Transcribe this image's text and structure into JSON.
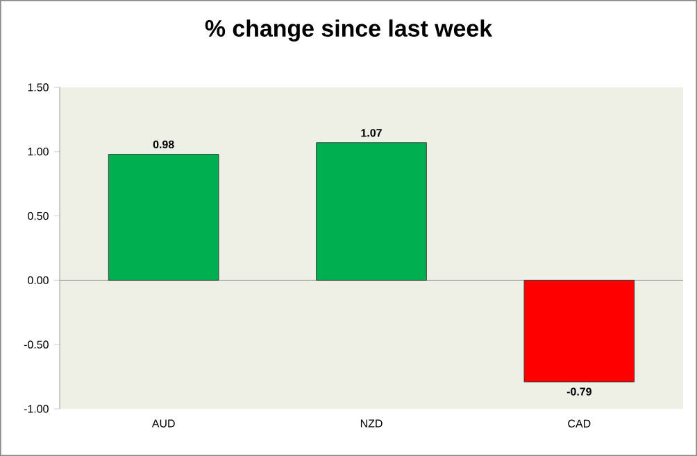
{
  "chart_data": {
    "type": "bar",
    "title": "% change since last week",
    "categories": [
      "AUD",
      "NZD",
      "CAD"
    ],
    "values": [
      0.98,
      1.07,
      -0.79
    ],
    "colors": [
      "#00b050",
      "#00b050",
      "#ff0000"
    ],
    "ylim": [
      -1.0,
      1.5
    ],
    "yticks": [
      {
        "value": -1.0,
        "label": "-1.00"
      },
      {
        "value": -0.5,
        "label": "-0.50"
      },
      {
        "value": 0,
        "label": "0.00"
      },
      {
        "value": 0.5,
        "label": "0.50"
      },
      {
        "value": 1.0,
        "label": "1.00"
      },
      {
        "value": 1.5,
        "label": "1.50"
      }
    ],
    "data_labels": true
  }
}
